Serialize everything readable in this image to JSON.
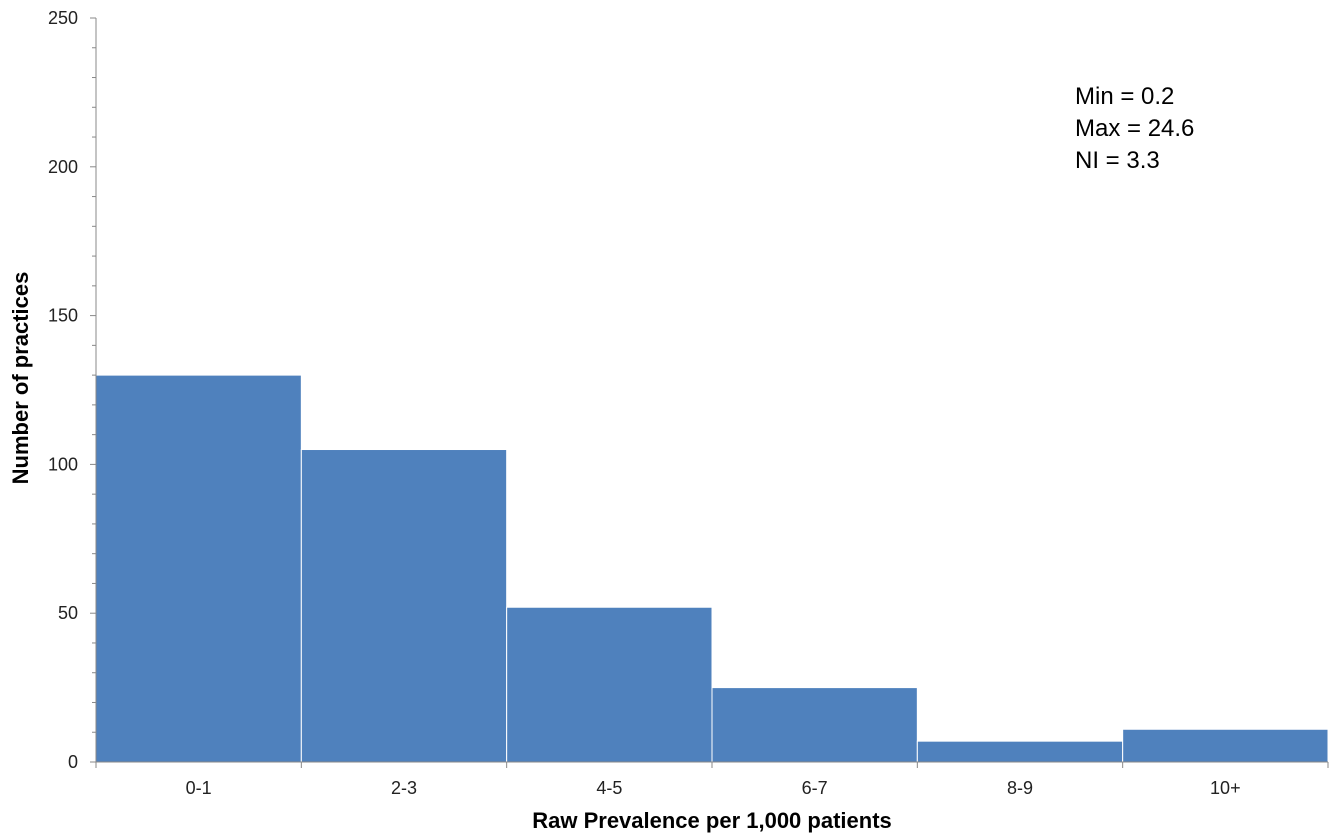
{
  "chart_data": {
    "type": "bar",
    "title": "",
    "xlabel": "Raw Prevalence per 1,000 patients",
    "ylabel": "Number of practices",
    "categories": [
      "0-1",
      "2-3",
      "4-5",
      "6-7",
      "8-9",
      "10+"
    ],
    "values": [
      130,
      105,
      52,
      25,
      7,
      11
    ],
    "ylim": [
      0,
      250
    ],
    "yticks": [
      "0",
      "50",
      "100",
      "150",
      "200",
      "250"
    ],
    "grid": false,
    "bar_color": "#4F81BD",
    "annotations": [
      "Min = 0.2",
      "Max = 24.6",
      "NI = 3.3"
    ]
  }
}
